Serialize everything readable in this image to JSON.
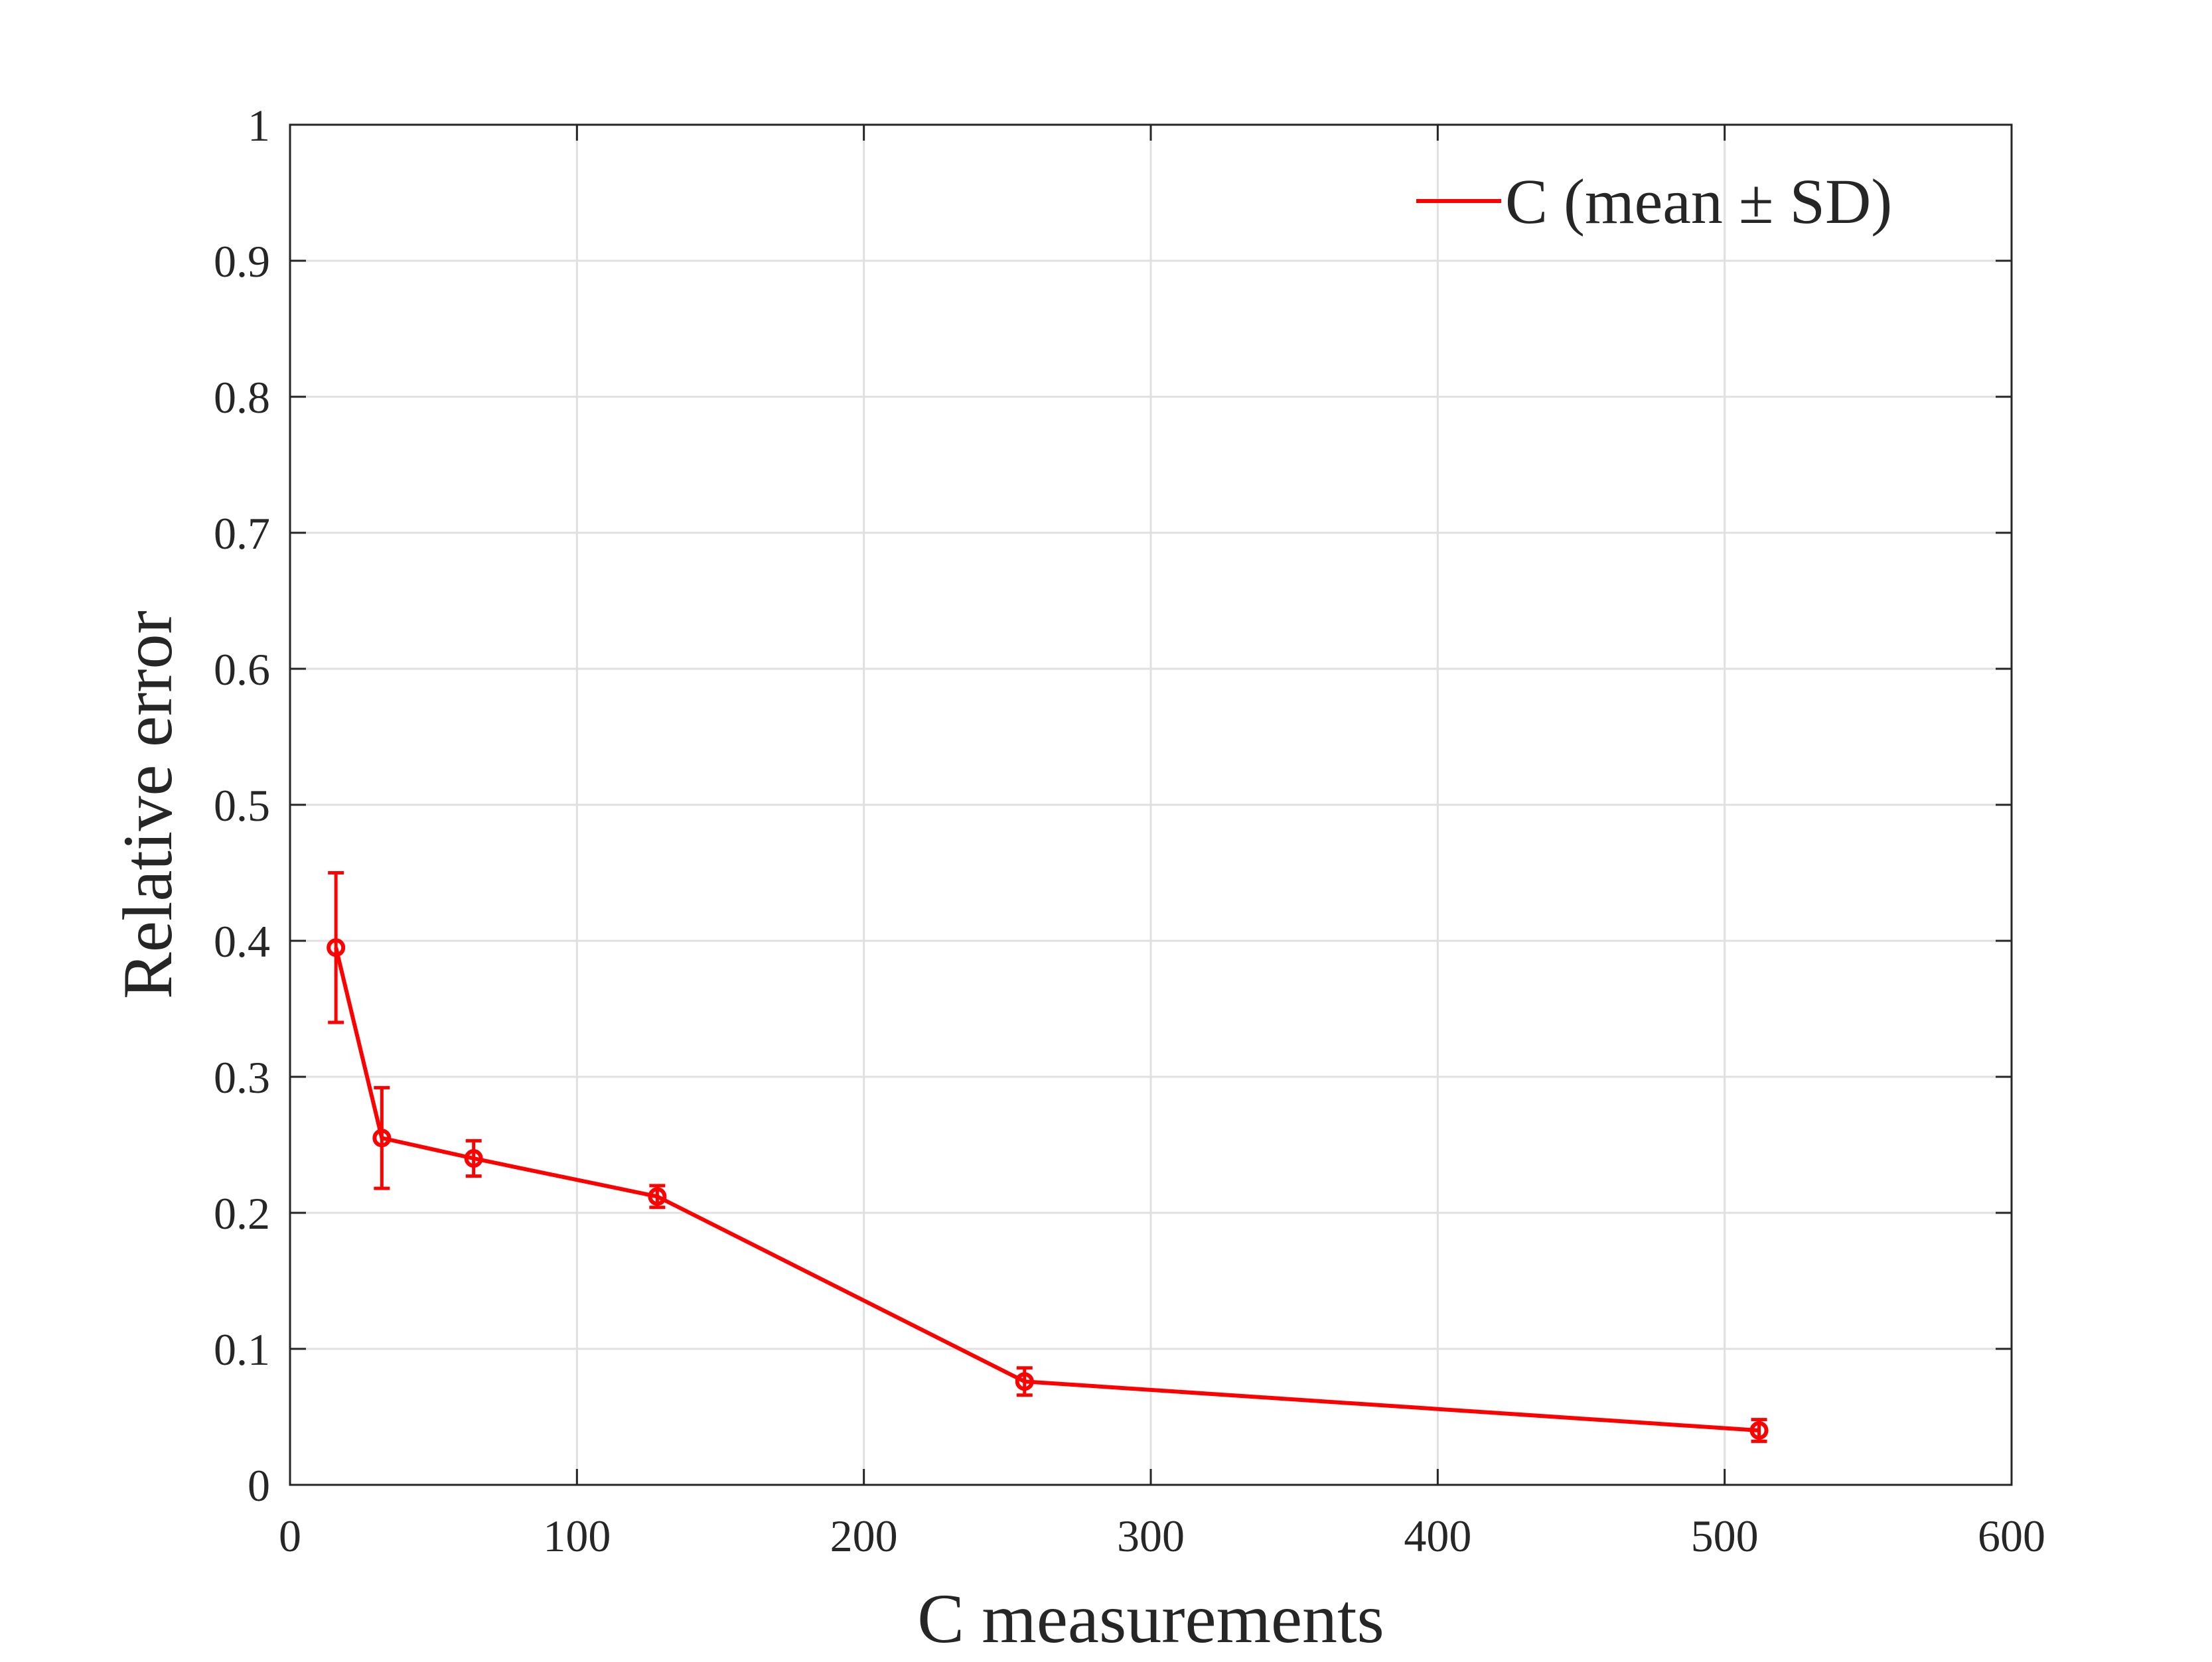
{
  "chart_data": {
    "type": "line",
    "xlabel": "C measurements",
    "ylabel": "Relative error",
    "xlim": [
      0,
      600
    ],
    "ylim": [
      0,
      1
    ],
    "xticks": [
      0,
      100,
      200,
      300,
      400,
      500,
      600
    ],
    "yticks": [
      0,
      0.1,
      0.2,
      0.3,
      0.4,
      0.5,
      0.6,
      0.7,
      0.8,
      0.9,
      1
    ],
    "xtick_labels": [
      "0",
      "100",
      "200",
      "300",
      "400",
      "500",
      "600"
    ],
    "ytick_labels": [
      "0",
      "0.1",
      "0.2",
      "0.3",
      "0.4",
      "0.5",
      "0.6",
      "0.7",
      "0.8",
      "0.9",
      "1"
    ],
    "grid": true,
    "legend_position": "top-right",
    "series": [
      {
        "name": "C (mean ± SD)",
        "color": "#ff0000",
        "marker": "circle",
        "x": [
          16,
          32,
          64,
          128,
          256,
          512
        ],
        "y": [
          0.395,
          0.255,
          0.24,
          0.212,
          0.076,
          0.04
        ],
        "error": [
          0.055,
          0.037,
          0.013,
          0.008,
          0.01,
          0.008
        ]
      }
    ]
  }
}
